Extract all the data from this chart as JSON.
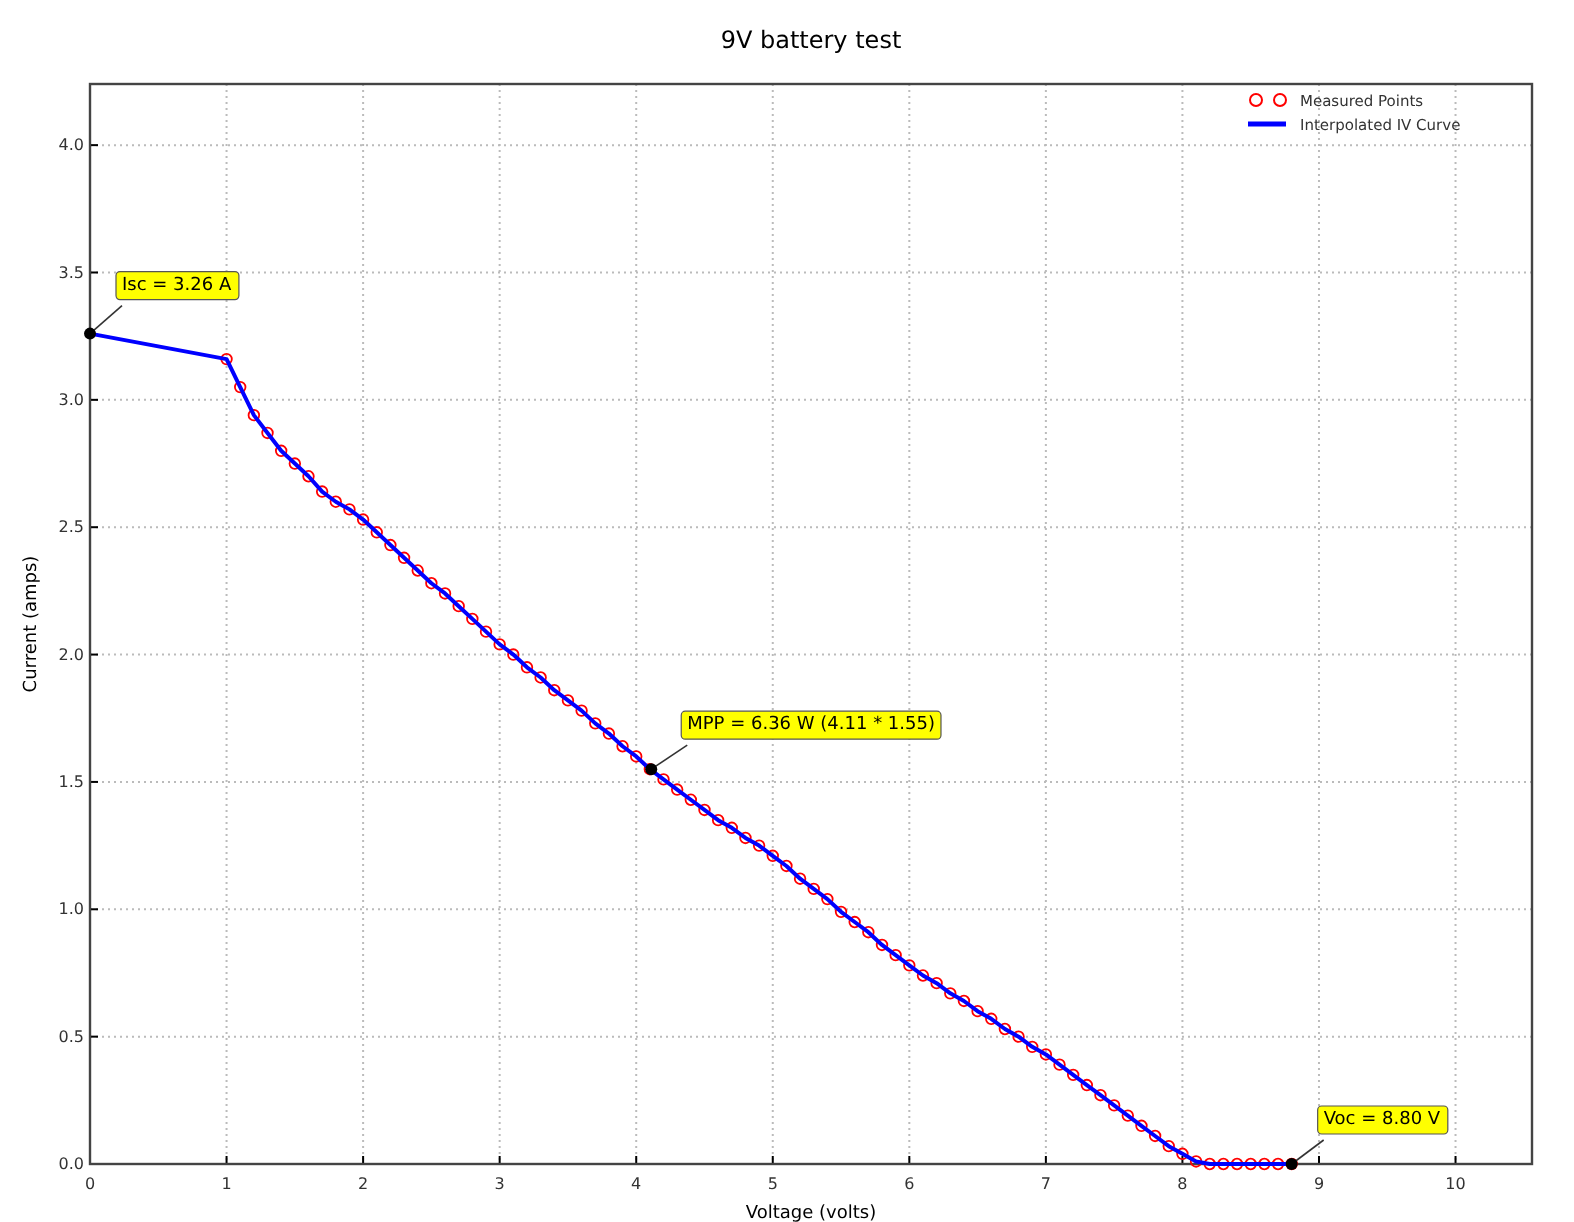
{
  "chart_data": {
    "type": "line",
    "title": "9V battery test",
    "xlabel": "Voltage (volts)",
    "ylabel": "Current (amps)",
    "x": [
      0,
      1.0,
      1.1,
      1.2,
      1.3,
      1.4,
      1.5,
      1.6,
      1.7,
      1.8,
      1.9,
      2.0,
      2.1,
      2.2,
      2.3,
      2.4,
      2.5,
      2.6,
      2.7,
      2.8,
      2.9,
      3.0,
      3.1,
      3.2,
      3.3,
      3.4,
      3.5,
      3.6,
      3.7,
      3.8,
      3.9,
      4.0,
      4.1,
      4.2,
      4.3,
      4.4,
      4.5,
      4.6,
      4.7,
      4.8,
      4.9,
      5.0,
      5.1,
      5.2,
      5.3,
      5.4,
      5.5,
      5.6,
      5.7,
      5.8,
      5.9,
      6.0,
      6.1,
      6.2,
      6.3,
      6.4,
      6.5,
      6.6,
      6.7,
      6.8,
      6.9,
      7.0,
      7.1,
      7.2,
      7.3,
      7.4,
      7.5,
      7.6,
      7.7,
      7.8,
      7.9,
      8.0,
      8.1,
      8.2,
      8.3,
      8.4,
      8.5,
      8.6,
      8.7,
      8.8
    ],
    "series": [
      {
        "name": "Measured Points",
        "type": "scatter",
        "marker": "circle",
        "color": "#ff0000",
        "values": [
          null,
          3.16,
          3.05,
          2.94,
          2.87,
          2.8,
          2.75,
          2.7,
          2.64,
          2.6,
          2.57,
          2.53,
          2.48,
          2.43,
          2.38,
          2.33,
          2.28,
          2.24,
          2.19,
          2.14,
          2.09,
          2.04,
          2.0,
          1.95,
          1.91,
          1.86,
          1.82,
          1.78,
          1.73,
          1.69,
          1.64,
          1.6,
          1.55,
          1.51,
          1.47,
          1.43,
          1.39,
          1.35,
          1.32,
          1.28,
          1.25,
          1.21,
          1.17,
          1.12,
          1.08,
          1.04,
          0.99,
          0.95,
          0.91,
          0.86,
          0.82,
          0.78,
          0.74,
          0.71,
          0.67,
          0.64,
          0.6,
          0.57,
          0.53,
          0.5,
          0.46,
          0.43,
          0.39,
          0.35,
          0.31,
          0.27,
          0.23,
          0.19,
          0.15,
          0.11,
          0.07,
          0.04,
          0.01,
          0,
          0,
          0,
          0,
          0,
          0,
          0
        ]
      },
      {
        "name": "Interpolated IV Curve",
        "color": "#0000ff",
        "values": [
          3.26,
          3.16,
          3.05,
          2.94,
          2.87,
          2.8,
          2.75,
          2.7,
          2.64,
          2.6,
          2.57,
          2.53,
          2.48,
          2.43,
          2.38,
          2.33,
          2.28,
          2.24,
          2.19,
          2.14,
          2.09,
          2.04,
          2.0,
          1.95,
          1.91,
          1.86,
          1.82,
          1.78,
          1.73,
          1.69,
          1.64,
          1.6,
          1.55,
          1.51,
          1.47,
          1.43,
          1.39,
          1.35,
          1.32,
          1.28,
          1.25,
          1.21,
          1.17,
          1.12,
          1.08,
          1.04,
          0.99,
          0.95,
          0.91,
          0.86,
          0.82,
          0.78,
          0.74,
          0.71,
          0.67,
          0.64,
          0.6,
          0.57,
          0.53,
          0.5,
          0.46,
          0.43,
          0.39,
          0.35,
          0.31,
          0.27,
          0.23,
          0.19,
          0.15,
          0.11,
          0.07,
          0.04,
          0.01,
          0,
          0,
          0,
          0,
          0,
          0,
          0
        ]
      }
    ],
    "xlim": [
      0,
      10.56
    ],
    "xticks": [
      0,
      1,
      2,
      3,
      4,
      5,
      6,
      7,
      8,
      9,
      10
    ],
    "ylim": [
      0,
      4.24
    ],
    "yticks": [
      {
        "value": 0,
        "label": "0.0"
      },
      {
        "value": 0.5,
        "label": "0.5"
      },
      {
        "value": 1,
        "label": "1.0"
      },
      {
        "value": 1.5,
        "label": "1.5"
      },
      {
        "value": 2,
        "label": "2.0"
      },
      {
        "value": 2.5,
        "label": "2.5"
      },
      {
        "value": 3,
        "label": "3.0"
      },
      {
        "value": 3.5,
        "label": "3.5"
      },
      {
        "value": 4,
        "label": "4.0"
      }
    ],
    "grid": true,
    "legend": "top right",
    "line_style": "solid",
    "annotations": [
      {
        "text": "Isc = 3.26 A",
        "x": 0,
        "y": 3.26
      },
      {
        "text": "MPP = 6.36 W (4.11 * 1.55)",
        "x": 4.11,
        "y": 1.55
      },
      {
        "text": "Voc = 8.80 V",
        "x": 8.8,
        "y": 0
      }
    ]
  }
}
